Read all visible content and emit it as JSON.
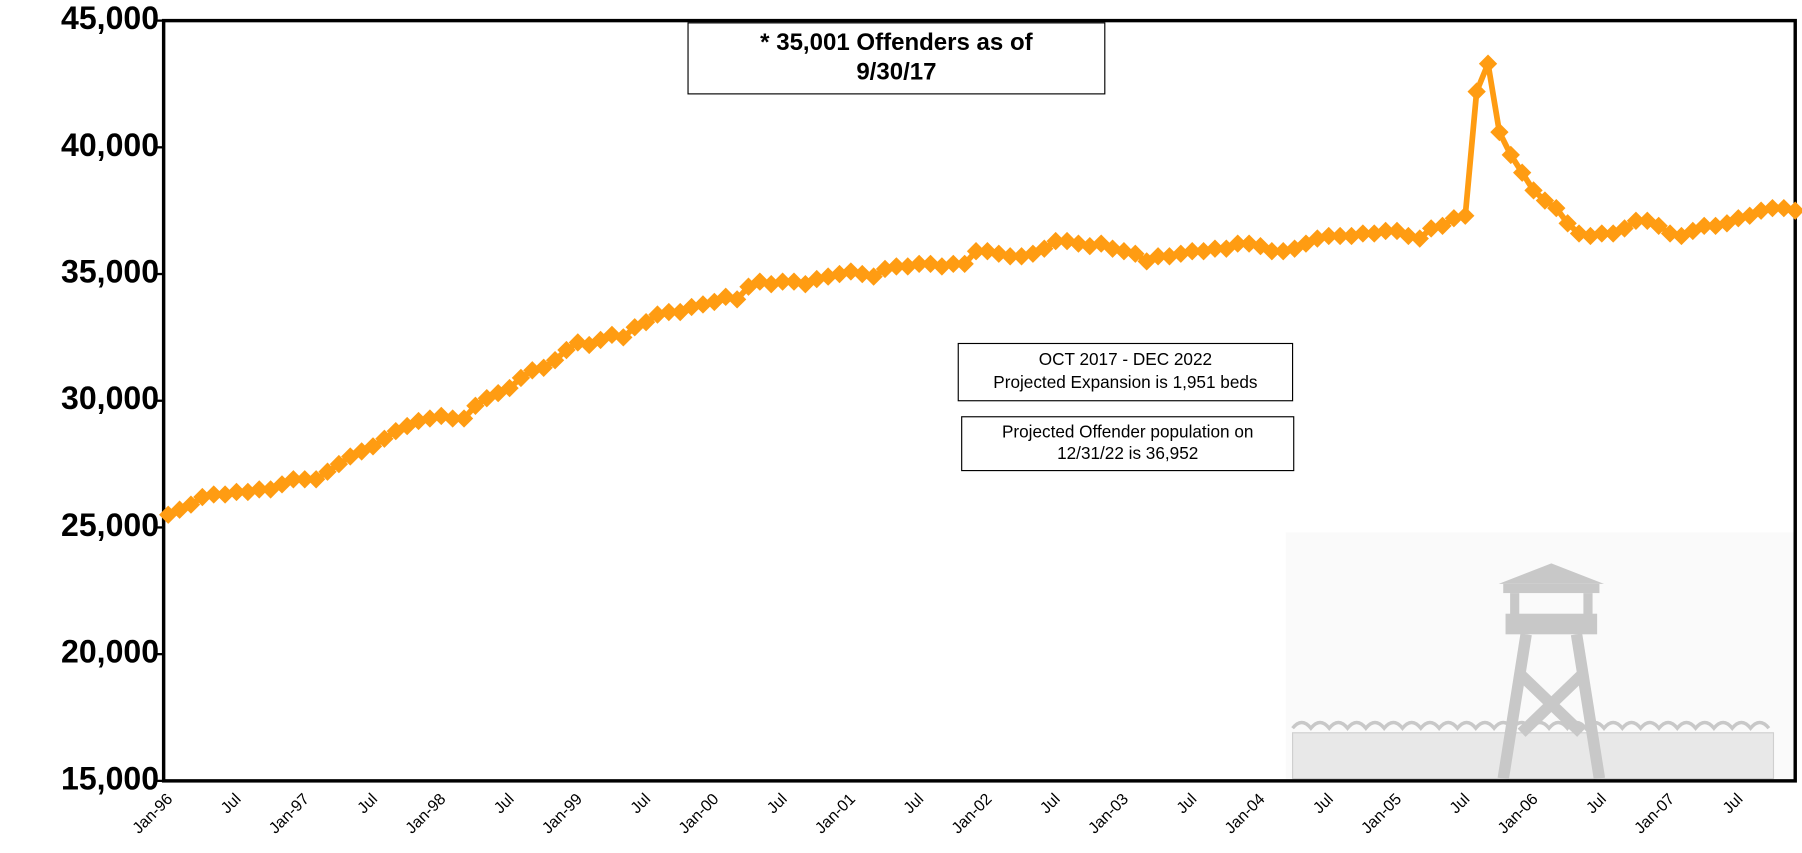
{
  "chart_data": {
    "type": "line",
    "categories": [
      "Jan-96",
      null,
      null,
      null,
      null,
      null,
      "Jul",
      null,
      null,
      null,
      null,
      null,
      "Jan-97",
      null,
      null,
      null,
      null,
      null,
      "Jul",
      null,
      null,
      null,
      null,
      null,
      "Jan-98",
      null,
      null,
      null,
      null,
      null,
      "Jul",
      null,
      null,
      null,
      null,
      null,
      "Jan-99",
      null,
      null,
      null,
      null,
      null,
      "Jul",
      null,
      null,
      null,
      null,
      null,
      "Jan-00",
      null,
      null,
      null,
      null,
      null,
      "Jul",
      null,
      null,
      null,
      null,
      null,
      "Jan-01",
      null,
      null,
      null,
      null,
      null,
      "Jul",
      null,
      null,
      null,
      null,
      null,
      "Jan-02",
      null,
      null,
      null,
      null,
      null,
      "Jul",
      null,
      null,
      null,
      null,
      null,
      "Jan-03",
      null,
      null,
      null,
      null,
      null,
      "Jul",
      null,
      null,
      null,
      null,
      null,
      "Jan-04",
      null,
      null,
      null,
      null,
      null,
      "Jul",
      null,
      null,
      null,
      null,
      null,
      "Jan-05",
      null,
      null,
      null,
      null,
      null,
      "Jul",
      null,
      null,
      null,
      null,
      null,
      "Jan-06",
      null,
      null,
      null,
      null,
      null,
      "Jul",
      null,
      null,
      null,
      null,
      null,
      "Jan-07",
      null,
      null,
      null,
      null,
      null,
      "Jul",
      null,
      null,
      null,
      null,
      null
    ],
    "series": [
      {
        "color": "#ff9c12",
        "values": [
          25500,
          25700,
          25900,
          26200,
          26300,
          26300,
          26400,
          26400,
          26500,
          26500,
          26700,
          26900,
          26900,
          26900,
          27200,
          27500,
          27800,
          28000,
          28200,
          28500,
          28800,
          29000,
          29200,
          29300,
          29400,
          29300,
          29300,
          29800,
          30100,
          30300,
          30500,
          30900,
          31200,
          31300,
          31600,
          32000,
          32300,
          32200,
          32400,
          32600,
          32500,
          32900,
          33100,
          33400,
          33500,
          33500,
          33700,
          33800,
          33900,
          34100,
          34000,
          34500,
          34700,
          34600,
          34700,
          34700,
          34600,
          34800,
          34900,
          35000,
          35100,
          35000,
          34900,
          35200,
          35300,
          35300,
          35400,
          35400,
          35300,
          35400,
          35400,
          35900,
          35900,
          35800,
          35700,
          35700,
          35800,
          36000,
          36300,
          36300,
          36200,
          36100,
          36200,
          36000,
          35900,
          35800,
          35500,
          35700,
          35700,
          35800,
          35900,
          35900,
          36000,
          36000,
          36200,
          36200,
          36100,
          35900,
          35900,
          36000,
          36200,
          36400,
          36500,
          36500,
          36500,
          36600,
          36600,
          36700,
          36700,
          36500,
          36400,
          36800,
          36900,
          37200,
          37300,
          42200,
          43300,
          40600,
          39700,
          39000,
          38300,
          37900,
          37600,
          37000,
          36600,
          36500,
          36600,
          36600,
          36800,
          37100,
          37100,
          36900,
          36600,
          36500,
          36700,
          36900,
          36900,
          37000,
          37200,
          37300,
          37500,
          37600,
          37600,
          37500
        ]
      }
    ],
    "ylim": [
      15000,
      45000
    ],
    "yticks": [
      {
        "value": 15000,
        "label": "15,000"
      },
      {
        "value": 20000,
        "label": "20,000"
      },
      {
        "value": 25000,
        "label": "25,000"
      },
      {
        "value": 30000,
        "label": "30,000"
      },
      {
        "value": 35000,
        "label": "35,000"
      },
      {
        "value": 40000,
        "label": "40,000"
      },
      {
        "value": 45000,
        "label": "45,000"
      }
    ],
    "annotations": [
      {
        "lines": [
          "* 35,001 Offenders as of",
          "9/30/17"
        ]
      },
      {
        "lines": [
          "OCT 2017 - DEC 2022",
          "Projected Expansion is 1,951 beds"
        ]
      },
      {
        "lines": [
          "Projected Offender population on",
          "12/31/22 is 36,952"
        ]
      }
    ]
  }
}
